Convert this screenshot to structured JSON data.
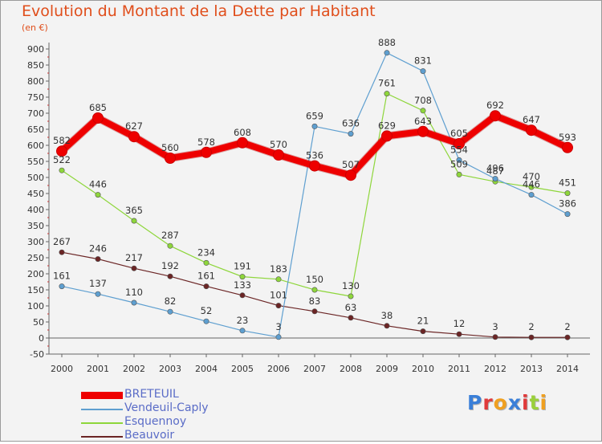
{
  "chart_data": {
    "type": "line",
    "title": "Evolution du Montant de la Dette par Habitant",
    "unit_label": "(en €)",
    "x": [
      "2000",
      "2001",
      "2002",
      "2003",
      "2004",
      "2005",
      "2006",
      "2007",
      "2008",
      "2009",
      "2010",
      "2011",
      "2012",
      "2013",
      "2014"
    ],
    "yticks": [
      900,
      850,
      800,
      750,
      700,
      650,
      600,
      550,
      500,
      450,
      400,
      350,
      300,
      250,
      200,
      150,
      100,
      50,
      0,
      -50
    ],
    "ylim": [
      -50,
      900
    ],
    "grid": false,
    "legend_position": "bottom-left",
    "series": [
      {
        "name": "BRETEUIL",
        "color": "#ee0000",
        "values": [
          582,
          685,
          627,
          560,
          578,
          608,
          570,
          536,
          507,
          629,
          643,
          605,
          692,
          647,
          593
        ]
      },
      {
        "name": "Vendeuil-Caply",
        "color": "#5e9fd0",
        "values": [
          161,
          137,
          110,
          82,
          52,
          23,
          3,
          659,
          636,
          888,
          831,
          554,
          496,
          446,
          386
        ]
      },
      {
        "name": "Esquennoy",
        "color": "#8ed63b",
        "values": [
          522,
          446,
          365,
          287,
          234,
          191,
          183,
          150,
          130,
          761,
          708,
          509,
          487,
          470,
          451
        ]
      },
      {
        "name": "Beauvoir",
        "color": "#6b2525",
        "values": [
          267,
          246,
          217,
          192,
          161,
          133,
          101,
          83,
          63,
          38,
          21,
          12,
          3,
          2,
          2
        ]
      }
    ]
  },
  "logo": {
    "letters": [
      "P",
      "r",
      "o",
      "x",
      "i",
      "t",
      "i"
    ],
    "colors": [
      "#3a7fd8",
      "#e03a3a",
      "#f0a020",
      "#3a7fd8",
      "#e03a3a",
      "#9ad03a",
      "#f0a020"
    ]
  }
}
